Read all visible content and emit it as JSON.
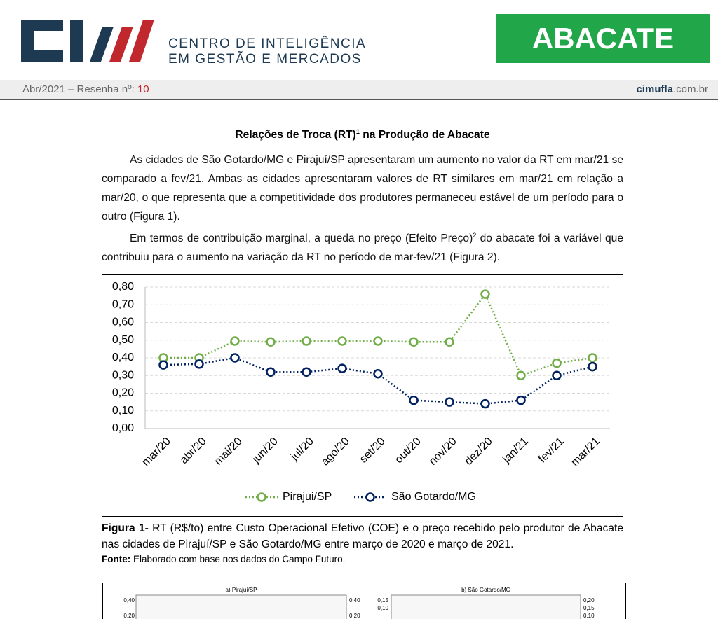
{
  "header": {
    "brand_line1": "CENTRO DE INTELIGÊNCIA",
    "brand_line2": "EM GESTÃO E MERCADOS",
    "product": "ABACATE",
    "issue": "Abr/2021 – Resenha nº: ",
    "issue_number": "10",
    "site_bold": "cimufla",
    "site_rest": ".com.br"
  },
  "article": {
    "title": [
      "Relações de Troca (RT)",
      "1",
      " na Produção de Abacate"
    ],
    "paragraphs": [
      [
        "As cidades de São Gotardo/MG e Pirajuí/SP apresentaram um aumento no valor da RT em mar/21 se comparado a fev/21. Ambas as cidades apresentaram valores de RT similares em mar/21 em relação a mar/20, o que representa que a competitividade dos produtores permaneceu estável de um período para o outro (Figura 1)."
      ],
      [
        "Em termos de contribuição marginal, a queda no preço (Efeito Preço)",
        "2",
        " do abacate foi a variável que contribuiu para o aumento na variação da RT no período de mar-fev/21 (Figura 2)."
      ]
    ],
    "caption_label": "Figura 1-",
    "caption": " RT (R$/to) entre Custo Operacional Efetivo (COE) e o preço recebido pelo produtor de Abacate nas cidades de Pirajuí/SP e São Gotardo/MG entre março de 2020 e março de 2021.",
    "source_label": "Fonte:",
    "source": " Elaborado com base nos dados do Campo Futuro."
  },
  "chart_data": {
    "type": "line",
    "categories": [
      "mar/20",
      "abr/20",
      "mai/20",
      "jun/20",
      "jul/20",
      "ago/20",
      "set/20",
      "out/20",
      "nov/20",
      "dez/20",
      "jan/21",
      "fev/21",
      "mar/21"
    ],
    "series": [
      {
        "name": "Pirajui/SP",
        "color": "#70ad47",
        "values": [
          0.4,
          0.4,
          0.495,
          0.49,
          0.495,
          0.495,
          0.495,
          0.49,
          0.49,
          0.76,
          0.3,
          0.37,
          0.4
        ]
      },
      {
        "name": "São Gotardo/MG",
        "color": "#002060",
        "values": [
          0.36,
          0.365,
          0.4,
          0.32,
          0.32,
          0.34,
          0.31,
          0.16,
          0.15,
          0.14,
          0.16,
          0.3,
          0.35
        ]
      }
    ],
    "ylim": [
      0,
      0.8
    ],
    "yticks": [
      {
        "value": 0,
        "label": "0,00"
      },
      {
        "value": 0.1,
        "label": "0,10"
      },
      {
        "value": 0.2,
        "label": "0,20"
      },
      {
        "value": 0.3,
        "label": "0,30"
      },
      {
        "value": 0.4,
        "label": "0,40"
      },
      {
        "value": 0.5,
        "label": "0,50"
      },
      {
        "value": 0.6,
        "label": "0,60"
      },
      {
        "value": 0.7,
        "label": "0,70"
      },
      {
        "value": 0.8,
        "label": "0,80"
      }
    ],
    "grid": true,
    "legend": "bottom"
  },
  "figure2": {
    "panels": [
      {
        "title": "a) Pirajuí/SP",
        "left_ticks": [
          "0,40",
          "0,20"
        ],
        "right_ticks": [
          "0,40",
          "0,20"
        ]
      },
      {
        "title": "b) São Gotardo/MG",
        "left_ticks": [
          "0,15",
          "0,10"
        ],
        "right_ticks": [
          "0,20",
          "0,15",
          "0,10"
        ]
      }
    ]
  }
}
